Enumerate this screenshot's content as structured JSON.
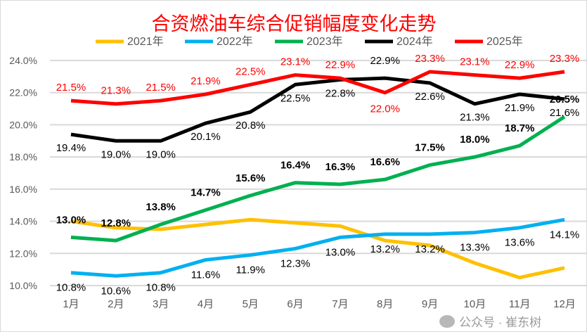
{
  "chart_data": {
    "type": "line",
    "title": "合资燃油车综合促销幅度变化走势",
    "categories": [
      "1月",
      "2月",
      "3月",
      "4月",
      "5月",
      "6月",
      "7月",
      "8月",
      "9月",
      "10月",
      "11月",
      "12月"
    ],
    "ylim": [
      10,
      24
    ],
    "yticks": [
      "10.0%",
      "12.0%",
      "14.0%",
      "16.0%",
      "18.0%",
      "20.0%",
      "22.0%",
      "24.0%"
    ],
    "grid": true,
    "legend": "top",
    "series": [
      {
        "name": "2021年",
        "color": "#FFC000",
        "values": [
          14.0,
          13.6,
          13.5,
          13.8,
          14.1,
          13.9,
          13.7,
          12.8,
          12.5,
          11.4,
          10.5,
          11.1
        ],
        "labels": false
      },
      {
        "name": "2022年",
        "color": "#00B0F0",
        "values": [
          10.8,
          10.6,
          10.8,
          11.6,
          11.9,
          12.3,
          13.0,
          13.2,
          13.2,
          13.3,
          13.6,
          14.1
        ],
        "labels": true
      },
      {
        "name": "2023年",
        "color": "#00B050",
        "values": [
          13.0,
          12.8,
          13.8,
          14.7,
          15.6,
          16.4,
          16.3,
          16.6,
          17.5,
          18.0,
          18.7,
          20.5
        ],
        "labels": true
      },
      {
        "name": "2024年",
        "color": "#000000",
        "values": [
          19.4,
          19.0,
          19.0,
          20.1,
          20.8,
          22.5,
          22.8,
          22.9,
          22.6,
          21.3,
          21.9,
          21.6
        ],
        "labels": true
      },
      {
        "name": "2025年",
        "color": "#FF0000",
        "values": [
          21.5,
          21.3,
          21.5,
          21.9,
          22.5,
          23.1,
          22.9,
          22.0,
          23.3,
          23.1,
          22.9,
          23.3
        ],
        "labels": true
      }
    ]
  },
  "watermark": "公众号 · 崔东树"
}
